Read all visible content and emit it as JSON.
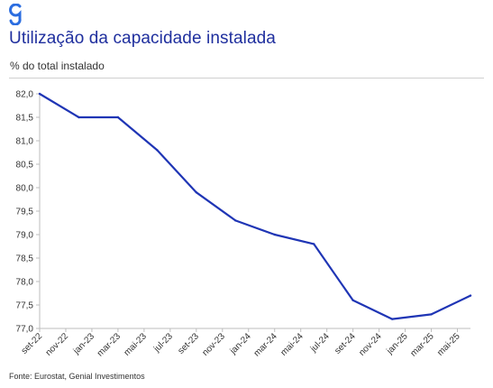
{
  "header": {
    "logo_color": "#2b6de0",
    "title": "Utilização da capacidade instalada",
    "subtitle": "% do total instalado"
  },
  "footer": {
    "source": "Fonte: Eurostat, Genial Investimentos"
  },
  "colors": {
    "title": "#1f2f9e",
    "line": "#1f35b5",
    "axis": "#bdbdbd"
  },
  "chart_data": {
    "type": "line",
    "title": "Utilização da capacidade instalada",
    "subtitle": "% do total instalado",
    "xlabel": "",
    "ylabel": "",
    "ylim": [
      77.0,
      82.0
    ],
    "y_ticks": [
      "82,0",
      "81,5",
      "81,0",
      "80,5",
      "80,0",
      "79,5",
      "79,0",
      "78,5",
      "78,0",
      "77,5",
      "77,0"
    ],
    "x_ticks": [
      "set-22",
      "nov-22",
      "jan-23",
      "mar-23",
      "mai-23",
      "jul-23",
      "set-23",
      "nov-23",
      "jan-24",
      "mar-24",
      "mai-24",
      "jul-24",
      "set-24",
      "nov-24",
      "jan-25",
      "mar-25",
      "mai-25"
    ],
    "grid": false,
    "legend": "none",
    "series": [
      {
        "x": [
          "set-22",
          "dez-22",
          "mar-23",
          "jun-23",
          "set-23",
          "dez-23",
          "mar-24",
          "jun-24",
          "set-24",
          "dez-24",
          "mar-25",
          "jun-25"
        ],
        "values": [
          82.0,
          81.5,
          81.5,
          80.8,
          79.9,
          79.3,
          79.0,
          78.8,
          77.6,
          77.2,
          77.3,
          77.7
        ]
      }
    ]
  }
}
